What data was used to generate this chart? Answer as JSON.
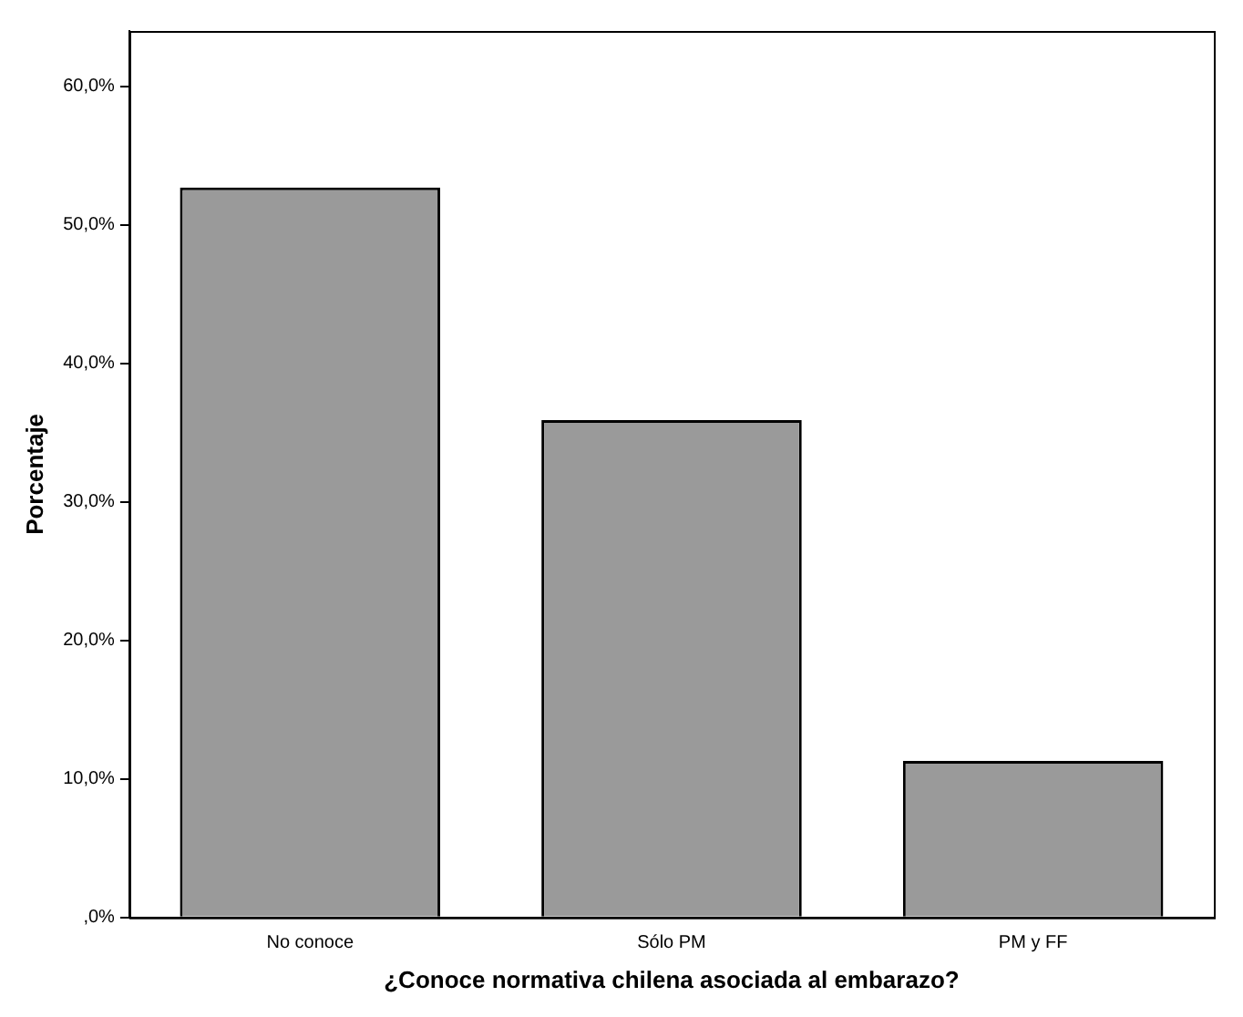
{
  "chart_data": {
    "type": "bar",
    "xlabel": "¿Conoce normativa chilena asociada al embarazo?",
    "ylabel": "Porcentaje",
    "categories": [
      "No conoce",
      "Sólo PM",
      "PM y FF"
    ],
    "values": [
      52.7,
      35.9,
      11.3
    ],
    "color": "#9a9a9a",
    "ylim": [
      0,
      64
    ],
    "yticks": [
      {
        "value": 0,
        "label": ",0%"
      },
      {
        "value": 10,
        "label": "10,0%"
      },
      {
        "value": 20,
        "label": "20,0%"
      },
      {
        "value": 30,
        "label": "30,0%"
      },
      {
        "value": 40,
        "label": "40,0%"
      },
      {
        "value": 50,
        "label": "50,0%"
      },
      {
        "value": 60,
        "label": "60,0%"
      }
    ],
    "grid": false,
    "legend": false
  }
}
